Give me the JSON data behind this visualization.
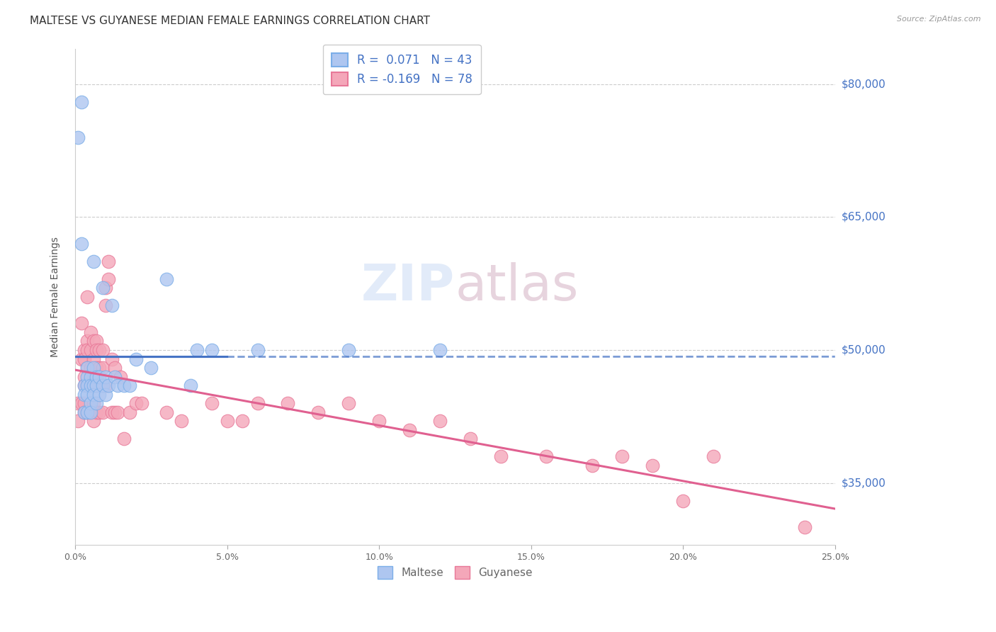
{
  "title": "MALTESE VS GUYANESE MEDIAN FEMALE EARNINGS CORRELATION CHART",
  "source": "Source: ZipAtlas.com",
  "ylabel": "Median Female Earnings",
  "xlim": [
    0.0,
    0.25
  ],
  "ylim": [
    28000,
    84000
  ],
  "xtick_labels": [
    "0.0%",
    "5.0%",
    "10.0%",
    "15.0%",
    "20.0%",
    "25.0%"
  ],
  "xtick_vals": [
    0.0,
    0.05,
    0.1,
    0.15,
    0.2,
    0.25
  ],
  "ytick_vals": [
    35000,
    50000,
    65000,
    80000
  ],
  "ytick_right_labels": [
    "$80,000",
    "$65,000",
    "$50,000",
    "$35,000"
  ],
  "maltese_color": "#aec6f0",
  "guyanese_color": "#f4a7b9",
  "maltese_edge": "#7baee8",
  "guyanese_edge": "#e87898",
  "maltese_line_color": "#4472c4",
  "guyanese_line_color": "#e06090",
  "maltese_R": 0.071,
  "maltese_N": 43,
  "guyanese_R": -0.169,
  "guyanese_N": 78,
  "title_fontsize": 11,
  "axis_label_fontsize": 10,
  "tick_fontsize": 9,
  "background_color": "#ffffff",
  "grid_color": "#cccccc",
  "maltese_x": [
    0.001,
    0.002,
    0.002,
    0.003,
    0.003,
    0.003,
    0.004,
    0.004,
    0.004,
    0.004,
    0.004,
    0.005,
    0.005,
    0.005,
    0.005,
    0.006,
    0.006,
    0.006,
    0.006,
    0.007,
    0.007,
    0.007,
    0.008,
    0.008,
    0.009,
    0.009,
    0.01,
    0.01,
    0.011,
    0.012,
    0.013,
    0.014,
    0.016,
    0.018,
    0.02,
    0.025,
    0.03,
    0.038,
    0.04,
    0.045,
    0.06,
    0.09,
    0.12
  ],
  "maltese_y": [
    74000,
    78000,
    62000,
    46000,
    45000,
    43000,
    48000,
    47000,
    46000,
    45000,
    43000,
    47000,
    46000,
    44000,
    43000,
    60000,
    48000,
    46000,
    45000,
    47000,
    46000,
    44000,
    47000,
    45000,
    57000,
    46000,
    47000,
    45000,
    46000,
    55000,
    47000,
    46000,
    46000,
    46000,
    49000,
    48000,
    58000,
    46000,
    50000,
    50000,
    50000,
    50000,
    50000
  ],
  "guyanese_x": [
    0.001,
    0.001,
    0.002,
    0.002,
    0.002,
    0.003,
    0.003,
    0.003,
    0.003,
    0.003,
    0.003,
    0.004,
    0.004,
    0.004,
    0.004,
    0.004,
    0.004,
    0.005,
    0.005,
    0.005,
    0.005,
    0.005,
    0.006,
    0.006,
    0.006,
    0.006,
    0.006,
    0.006,
    0.007,
    0.007,
    0.007,
    0.007,
    0.007,
    0.007,
    0.008,
    0.008,
    0.008,
    0.008,
    0.009,
    0.009,
    0.009,
    0.009,
    0.01,
    0.01,
    0.01,
    0.011,
    0.011,
    0.012,
    0.012,
    0.013,
    0.013,
    0.014,
    0.015,
    0.016,
    0.018,
    0.02,
    0.022,
    0.03,
    0.035,
    0.045,
    0.05,
    0.055,
    0.06,
    0.07,
    0.08,
    0.09,
    0.1,
    0.11,
    0.12,
    0.13,
    0.14,
    0.155,
    0.17,
    0.18,
    0.19,
    0.2,
    0.21,
    0.24
  ],
  "guyanese_y": [
    44000,
    42000,
    53000,
    49000,
    44000,
    50000,
    49000,
    47000,
    46000,
    44000,
    43000,
    56000,
    51000,
    50000,
    48000,
    46000,
    43000,
    52000,
    50000,
    48000,
    46000,
    43000,
    51000,
    49000,
    47000,
    46000,
    44000,
    42000,
    51000,
    50000,
    48000,
    47000,
    46000,
    43000,
    50000,
    48000,
    46000,
    43000,
    50000,
    48000,
    46000,
    43000,
    57000,
    55000,
    46000,
    60000,
    58000,
    49000,
    43000,
    48000,
    43000,
    43000,
    47000,
    40000,
    43000,
    44000,
    44000,
    43000,
    42000,
    44000,
    42000,
    42000,
    44000,
    44000,
    43000,
    44000,
    42000,
    41000,
    42000,
    40000,
    38000,
    38000,
    37000,
    38000,
    37000,
    33000,
    38000,
    30000
  ]
}
